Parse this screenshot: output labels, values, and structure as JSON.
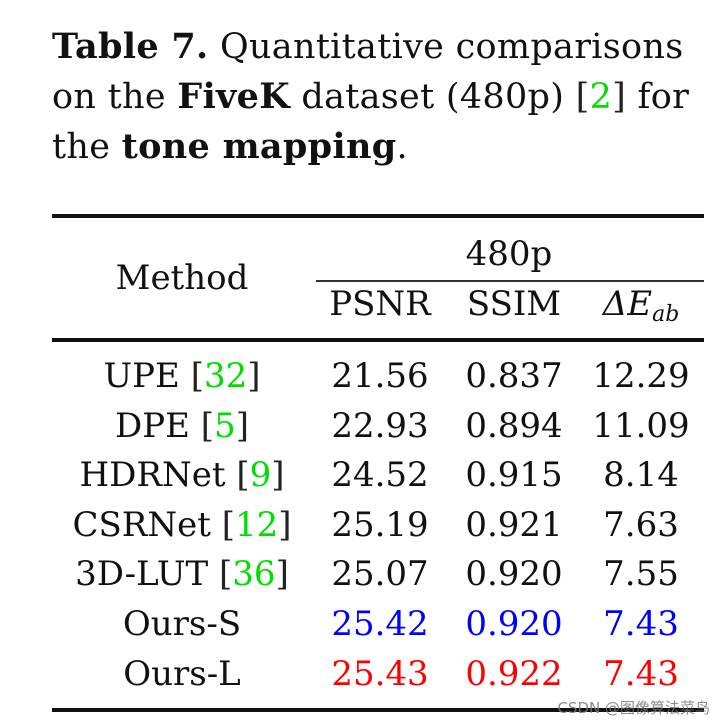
{
  "caption": {
    "label": "Table 7.",
    "text_1": " Quantitative comparisons on the ",
    "bold_1": "FiveK",
    "text_2": " dataset (480p) ",
    "cite_open": "[",
    "cite": "2",
    "cite_close": "]",
    "text_3": " for the ",
    "bold_2": "tone mapping",
    "text_4": "."
  },
  "table": {
    "header": {
      "method": "Method",
      "group": "480p",
      "columns": [
        "PSNR",
        "SSIM",
        "ΔE",
        "ab"
      ]
    },
    "rows": [
      {
        "name": "UPE",
        "cite": "32",
        "psnr": "21.56",
        "ssim": "0.837",
        "de": "12.29",
        "color": "black"
      },
      {
        "name": "DPE",
        "cite": "5",
        "psnr": "22.93",
        "ssim": "0.894",
        "de": "11.09",
        "color": "black"
      },
      {
        "name": "HDRNet",
        "cite": "9",
        "psnr": "24.52",
        "ssim": "0.915",
        "de": "8.14",
        "color": "black"
      },
      {
        "name": "CSRNet",
        "cite": "12",
        "psnr": "25.19",
        "ssim": "0.921",
        "de": "7.63",
        "color": "black"
      },
      {
        "name": "3D-LUT",
        "cite": "36",
        "psnr": "25.07",
        "ssim": "0.920",
        "de": "7.55",
        "color": "black"
      },
      {
        "name": "Ours-S",
        "cite": null,
        "psnr": "25.42",
        "ssim": "0.920",
        "de": "7.43",
        "color": "blue"
      },
      {
        "name": "Ours-L",
        "cite": null,
        "psnr": "25.43",
        "ssim": "0.922",
        "de": "7.43",
        "color": "red"
      }
    ]
  },
  "colors": {
    "cite": "#00dd00",
    "second_best": "#0000ff",
    "best": "#ff0000"
  },
  "watermark": "CSDN @图像算法菜鸟"
}
